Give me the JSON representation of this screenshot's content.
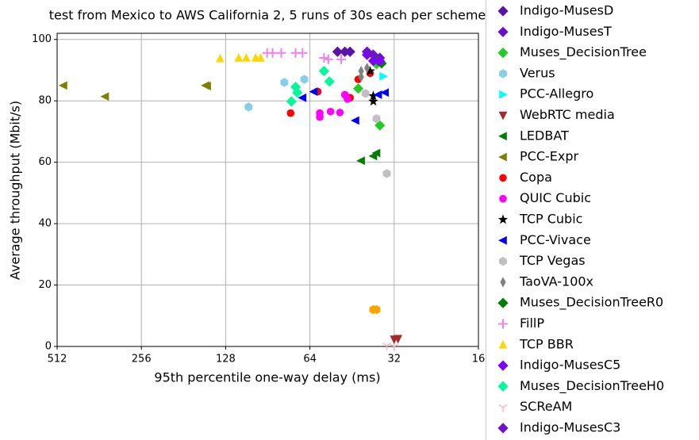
{
  "chart_data": {
    "type": "scatter",
    "title": "test from Mexico to AWS California 2, 5 runs of 30s each per scheme",
    "x_label": "95th percentile one-way delay (ms)",
    "y_label": "Average throughput (Mbit/s)",
    "xscale": "log",
    "xlim": [
      512,
      16
    ],
    "xticks": [
      512,
      256,
      128,
      64,
      32,
      16
    ],
    "ylim": [
      0,
      102
    ],
    "yticks": [
      0,
      20,
      40,
      60,
      80,
      100
    ],
    "grid": true,
    "legend": "right",
    "series": [
      {
        "name": "Indigo-MusesD",
        "color": "#5a12a8",
        "marker": "diamond",
        "x": [
          51,
          48,
          46
        ],
        "values": [
          96,
          96,
          96
        ]
      },
      {
        "name": "Indigo-MusesT",
        "color": "#6a0dcc",
        "marker": "diamond",
        "x": [
          40,
          38,
          36
        ],
        "values": [
          96,
          95,
          94
        ]
      },
      {
        "name": "Muses_DecisionTree",
        "color": "#22cc22",
        "marker": "diamond",
        "x": [
          43,
          37,
          36
        ],
        "values": [
          84,
          92,
          72
        ]
      },
      {
        "name": "Verus",
        "color": "#87ceeb",
        "marker": "hexagon",
        "x": [
          106,
          79,
          67
        ],
        "values": [
          78,
          86,
          87
        ]
      },
      {
        "name": "PCC-Allegro",
        "color": "#00ffff",
        "marker": "tri-right",
        "x": [
          35
        ],
        "values": [
          88
        ]
      },
      {
        "name": "WebRTC media",
        "color": "#a52a2a",
        "marker": "tri-down",
        "x": [
          32,
          31
        ],
        "values": [
          2.3,
          2.5
        ]
      },
      {
        "name": "LEDBAT",
        "color": "#008000",
        "marker": "tri-left",
        "x": [
          42,
          38,
          37
        ],
        "values": [
          60.5,
          62,
          63
        ]
      },
      {
        "name": "PCC-Expr",
        "color": "#808000",
        "marker": "tri-left",
        "x": [
          486,
          345,
          151,
          149
        ],
        "values": [
          85,
          81.4,
          85,
          84.8
        ]
      },
      {
        "name": "Copa",
        "color": "#ff0000",
        "marker": "circle",
        "x": [
          75,
          60,
          46,
          43,
          39
        ],
        "values": [
          76,
          83,
          81,
          87,
          89
        ]
      },
      {
        "name": "QUIC Cubic",
        "color": "#ff00ff",
        "marker": "circle",
        "x": [
          59,
          59,
          54,
          50,
          48,
          47
        ],
        "values": [
          74.7,
          76,
          76.5,
          76.2,
          82,
          80.6
        ]
      },
      {
        "name": "TCP Cubic",
        "color": "#000000",
        "marker": "star",
        "x": [
          39,
          38,
          38
        ],
        "values": [
          89.7,
          81.6,
          79.8
        ]
      },
      {
        "name": "PCC-Vivace",
        "color": "#0000ff",
        "marker": "tri-left",
        "x": [
          68,
          62,
          44,
          36.5,
          34.5
        ],
        "values": [
          81,
          83,
          73.6,
          82,
          82.7
        ]
      },
      {
        "name": "TCP Vegas",
        "color": "#c0c0c0",
        "marker": "hexagon",
        "x": [
          34,
          37,
          40.5
        ],
        "values": [
          56.3,
          74.2,
          82.4
        ]
      },
      {
        "name": "TaoVA-100x",
        "color": "#808080",
        "marker": "thin-diamond",
        "x": [
          42,
          42,
          40
        ],
        "values": [
          87.8,
          89.7,
          90.7
        ]
      },
      {
        "name": "Muses_DecisionTreeR0",
        "color": "#008000",
        "marker": "diamond",
        "x": [
          35.5,
          36.5
        ],
        "values": [
          92.2,
          93
        ]
      },
      {
        "name": "FillP",
        "color": "#ee82ee",
        "marker": "plus",
        "x": [
          91,
          87,
          81,
          72,
          68,
          57,
          55,
          49.5
        ],
        "values": [
          95.6,
          95.6,
          95.6,
          95.6,
          95.6,
          94,
          93.5,
          93.5
        ]
      },
      {
        "name": "TCP BBR",
        "color": "#ffd700",
        "marker": "tri-up",
        "x": [
          134,
          115,
          108,
          100,
          96
        ],
        "values": [
          93.8,
          94,
          94,
          94,
          94
        ]
      },
      {
        "name": "Indigo-MusesC5",
        "color": "#8000ff",
        "marker": "diamond",
        "x": [
          40,
          38,
          36
        ],
        "values": [
          95,
          93,
          93
        ]
      },
      {
        "name": "Muses_DecisionTreeH0",
        "color": "#00fa9a",
        "marker": "diamond",
        "x": [
          74.5,
          72,
          71,
          57,
          54.5
        ],
        "values": [
          79.8,
          84.5,
          82.7,
          89.7,
          86.3
        ]
      },
      {
        "name": "SCReAM",
        "color": "#ffb6c1",
        "marker": "tri-y",
        "x": [
          34,
          32
        ],
        "values": [
          0.3,
          0
        ]
      },
      {
        "name": "Indigo-MusesC3",
        "color": "#7010d0",
        "marker": "diamond",
        "x": [
          40,
          38
        ],
        "values": [
          96,
          95
        ]
      },
      {
        "color": "#ffa500",
        "marker": "hexagon",
        "x": [
          38,
          37
        ],
        "values": [
          12,
          12
        ]
      }
    ]
  }
}
